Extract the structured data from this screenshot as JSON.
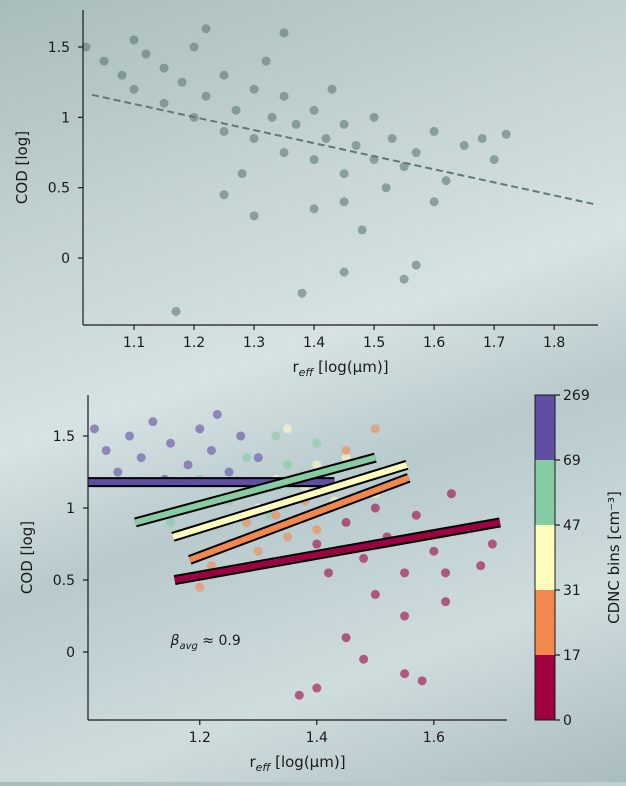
{
  "chart_data": [
    {
      "type": "scatter",
      "ylabel": "COD [log]",
      "xlabel": {
        "main": "r",
        "sub": "eff",
        "rest": " [log(μm)]"
      },
      "xlim": [
        1.015,
        1.873
      ],
      "ylim": [
        -0.476,
        1.763
      ],
      "xticks": [
        1.1,
        1.2,
        1.3,
        1.4,
        1.5,
        1.6,
        1.7,
        1.8
      ],
      "yticks": [
        0.0,
        0.5,
        1.0,
        1.5
      ],
      "series": [
        {
          "color": "#5f7878",
          "x": [
            1.02,
            1.05,
            1.08,
            1.1,
            1.12,
            1.15,
            1.15,
            1.18,
            1.2,
            1.2,
            1.22,
            1.25,
            1.25,
            1.27,
            1.3,
            1.3,
            1.32,
            1.33,
            1.35,
            1.35,
            1.37,
            1.4,
            1.4,
            1.42,
            1.43,
            1.45,
            1.45,
            1.47,
            1.5,
            1.5,
            1.52,
            1.53,
            1.55,
            1.57,
            1.6,
            1.62,
            1.65,
            1.68,
            1.7,
            1.72,
            1.17,
            1.38,
            1.45,
            1.55,
            1.57,
            1.3,
            1.4,
            1.48,
            1.6,
            1.25,
            1.22,
            1.35,
            1.1,
            1.28,
            1.45
          ],
          "values": [
            1.5,
            1.4,
            1.3,
            1.2,
            1.45,
            1.1,
            1.35,
            1.25,
            1.0,
            1.5,
            1.15,
            0.9,
            1.3,
            1.05,
            1.2,
            0.85,
            1.4,
            1.0,
            0.75,
            1.15,
            0.95,
            1.05,
            0.7,
            0.85,
            1.2,
            0.6,
            0.95,
            0.8,
            0.7,
            1.0,
            0.5,
            0.85,
            0.65,
            0.75,
            0.9,
            0.55,
            0.8,
            0.85,
            0.7,
            0.88,
            -0.38,
            -0.25,
            -0.1,
            -0.15,
            -0.05,
            0.3,
            0.35,
            0.2,
            0.4,
            0.45,
            1.63,
            1.6,
            1.55,
            0.6,
            0.4
          ],
          "fit": {
            "x": [
              1.03,
              1.87
            ],
            "y": [
              1.16,
              0.38
            ],
            "style": "dashed"
          }
        }
      ]
    },
    {
      "type": "scatter",
      "ylabel": "COD [log]",
      "xlabel": {
        "main": "r",
        "sub": "eff",
        "rest": " [log(μm)]"
      },
      "xlim": [
        1.009,
        1.725
      ],
      "ylim": [
        -0.472,
        1.785
      ],
      "xticks": [
        1.2,
        1.4,
        1.6
      ],
      "yticks": [
        0.0,
        0.5,
        1.0,
        1.5
      ],
      "annotation": {
        "symbol": "β",
        "sub": "avg",
        "rest": " ≈ 0.9"
      },
      "colorbar": {
        "label": "CDNC bins [cm⁻³]",
        "ticks": [
          0,
          17,
          31,
          47,
          69,
          269
        ],
        "colors": [
          "#9e0142",
          "#f4874e",
          "#fdfdbd",
          "#86cca3",
          "#5e4fa2"
        ]
      },
      "series": [
        {
          "color": "#5e4fa2",
          "x": [
            1.02,
            1.04,
            1.06,
            1.08,
            1.1,
            1.12,
            1.14,
            1.15,
            1.18,
            1.2,
            1.22,
            1.25,
            1.27,
            1.3,
            1.23
          ],
          "values": [
            1.55,
            1.4,
            1.25,
            1.5,
            1.35,
            1.6,
            1.2,
            1.45,
            1.3,
            1.55,
            1.4,
            1.25,
            1.5,
            1.35,
            1.65
          ],
          "fit": {
            "x": [
              1.009,
              1.43
            ],
            "y": [
              1.18,
              1.18
            ]
          }
        },
        {
          "color": "#86cca3",
          "x": [
            1.2,
            1.25,
            1.28,
            1.3,
            1.32,
            1.35,
            1.38,
            1.4,
            1.33,
            1.15,
            1.42
          ],
          "values": [
            1.2,
            1.05,
            1.35,
            1.15,
            0.95,
            1.3,
            1.1,
            1.45,
            1.5,
            0.9,
            1.25
          ],
          "fit": {
            "x": [
              1.09,
              1.5
            ],
            "y": [
              0.9,
              1.35
            ]
          }
        },
        {
          "color": "#fdfdbd",
          "x": [
            1.3,
            1.33,
            1.36,
            1.38,
            1.4,
            1.43,
            1.45,
            1.47,
            1.5,
            1.35
          ],
          "values": [
            1.0,
            1.2,
            0.9,
            1.15,
            1.3,
            1.05,
            1.35,
            1.2,
            1.1,
            1.55
          ],
          "fit": {
            "x": [
              1.154,
              1.554
            ],
            "y": [
              0.8,
              1.3
            ]
          }
        },
        {
          "color": "#f4874e",
          "x": [
            1.22,
            1.25,
            1.28,
            1.3,
            1.33,
            1.35,
            1.38,
            1.4,
            1.42,
            1.45,
            1.5,
            1.2
          ],
          "values": [
            0.6,
            0.75,
            0.9,
            0.7,
            0.95,
            0.8,
            1.05,
            0.85,
            1.15,
            1.4,
            1.55,
            0.45
          ],
          "fit": {
            "x": [
              1.183,
              1.557
            ],
            "y": [
              0.64,
              1.21
            ]
          }
        },
        {
          "color": "#9e0142",
          "x": [
            1.4,
            1.42,
            1.45,
            1.48,
            1.5,
            1.5,
            1.52,
            1.55,
            1.57,
            1.6,
            1.62,
            1.63,
            1.65,
            1.68,
            1.7,
            1.45,
            1.48,
            1.55,
            1.58,
            1.4,
            1.37,
            1.55,
            1.62
          ],
          "values": [
            0.75,
            0.55,
            0.9,
            0.65,
            0.4,
            1.0,
            0.8,
            0.55,
            0.95,
            0.7,
            0.35,
            1.1,
            0.85,
            0.6,
            0.75,
            0.1,
            -0.05,
            -0.15,
            -0.2,
            -0.25,
            -0.3,
            0.25,
            0.55
          ],
          "fit": {
            "x": [
              1.157,
              1.713
            ],
            "y": [
              0.5,
              0.9
            ]
          }
        }
      ]
    }
  ]
}
